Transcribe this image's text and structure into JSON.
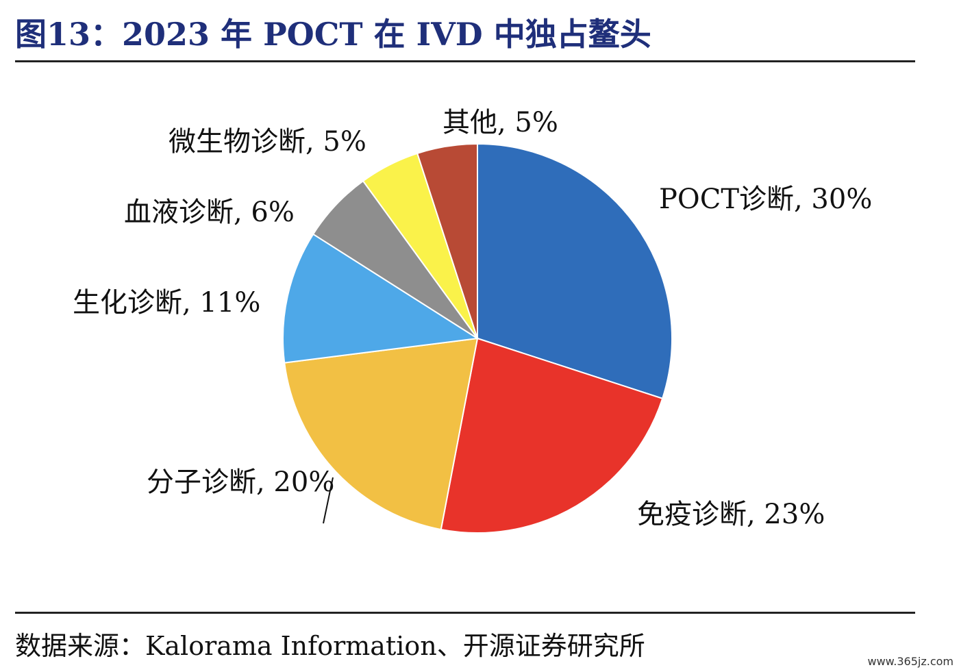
{
  "header": {
    "title": "图13：2023 年 POCT 在 IVD 中独占鳌头"
  },
  "chart_data": {
    "type": "pie",
    "start_angle_deg": 0,
    "direction": "clockwise",
    "slices": [
      {
        "label": "POCT诊断, 30%",
        "value": 30,
        "color": "#2f6dba"
      },
      {
        "label": "免疫诊断, 23%",
        "value": 23,
        "color": "#e8332a"
      },
      {
        "label": "分子诊断, 20%",
        "value": 20,
        "color": "#f2c044"
      },
      {
        "label": "生化诊断, 11%",
        "value": 11,
        "color": "#4ea8e8"
      },
      {
        "label": "血液诊断, 6%",
        "value": 6,
        "color": "#8e8e8e"
      },
      {
        "label": "微生物诊断, 5%",
        "value": 5,
        "color": "#faf24a"
      },
      {
        "label": "其他, 5%",
        "value": 5,
        "color": "#b84a35"
      }
    ]
  },
  "footer": {
    "source": "数据来源：Kalorama Information、开源证券研究所",
    "watermark": "www.365jz.com"
  }
}
